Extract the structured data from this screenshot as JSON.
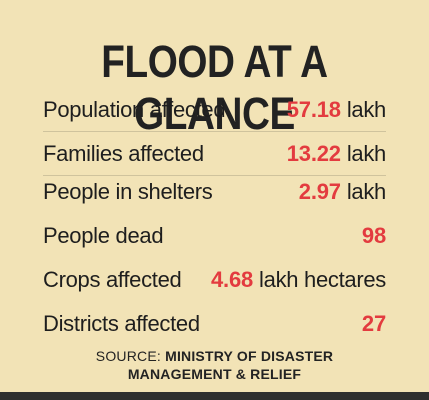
{
  "title": "FLOOD AT A GLANCE",
  "rows": [
    {
      "label": "Population affected",
      "number": "57.18",
      "unit": "lakh"
    },
    {
      "label": "Families affected",
      "number": "13.22",
      "unit": "lakh"
    },
    {
      "label": "People in shelters",
      "number": "2.97",
      "unit": "lakh"
    },
    {
      "label": "People dead",
      "number": "98",
      "unit": ""
    },
    {
      "label": "Crops affected",
      "number": "4.68",
      "unit": "lakh hectares"
    },
    {
      "label": "Districts affected",
      "number": "27",
      "unit": ""
    }
  ],
  "source": {
    "label": "SOURCE:",
    "line1": "MINISTRY OF DISASTER",
    "line2": "MANAGEMENT & RELIEF"
  },
  "colors": {
    "background": "#f2e3b6",
    "accent_number": "#e33b3f",
    "text": "#1e1e1e",
    "bottom_bar": "#2f2f2f"
  }
}
